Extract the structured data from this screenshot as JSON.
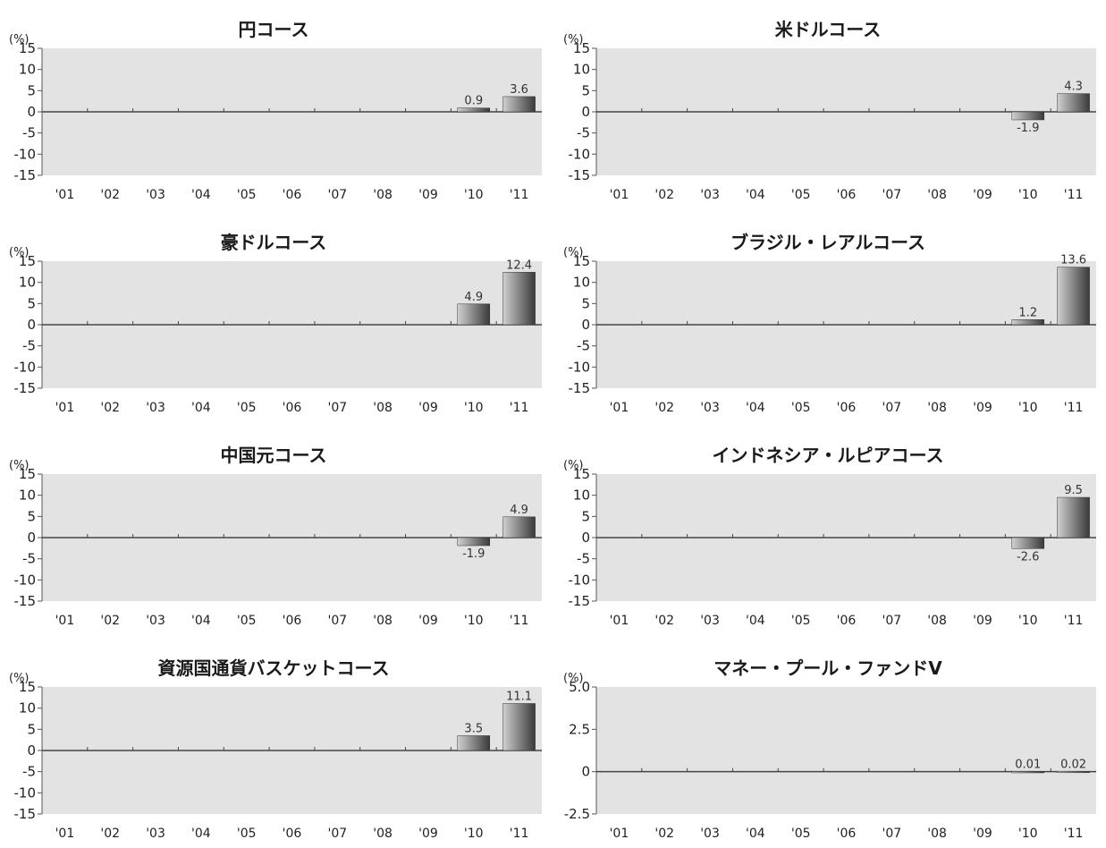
{
  "chart_data": [
    {
      "type": "bar",
      "title": "円コース",
      "ylabel": "(%)",
      "categories": [
        "'01",
        "'02",
        "'03",
        "'04",
        "'05",
        "'06",
        "'07",
        "'08",
        "'09",
        "'10",
        "'11"
      ],
      "values": [
        null,
        null,
        null,
        null,
        null,
        null,
        null,
        null,
        null,
        0.9,
        3.6
      ],
      "data_labels": [
        "",
        "",
        "",
        "",
        "",
        "",
        "",
        "",
        "",
        "0.9",
        "3.6"
      ],
      "ylim": [
        -15,
        15
      ],
      "yticks": [
        15,
        10,
        5,
        0,
        -5,
        -10,
        -15
      ],
      "ytick_labels": [
        "15",
        "10",
        "5",
        "0",
        "-5",
        "-10",
        "-15"
      ],
      "grid": false
    },
    {
      "type": "bar",
      "title": "米ドルコース",
      "ylabel": "(%)",
      "categories": [
        "'01",
        "'02",
        "'03",
        "'04",
        "'05",
        "'06",
        "'07",
        "'08",
        "'09",
        "'10",
        "'11"
      ],
      "values": [
        null,
        null,
        null,
        null,
        null,
        null,
        null,
        null,
        null,
        -1.9,
        4.3
      ],
      "data_labels": [
        "",
        "",
        "",
        "",
        "",
        "",
        "",
        "",
        "",
        "-1.9",
        "4.3"
      ],
      "ylim": [
        -15,
        15
      ],
      "yticks": [
        15,
        10,
        5,
        0,
        -5,
        -10,
        -15
      ],
      "ytick_labels": [
        "15",
        "10",
        "5",
        "0",
        "-5",
        "-10",
        "-15"
      ],
      "grid": false
    },
    {
      "type": "bar",
      "title": "豪ドルコース",
      "ylabel": "(%)",
      "categories": [
        "'01",
        "'02",
        "'03",
        "'04",
        "'05",
        "'06",
        "'07",
        "'08",
        "'09",
        "'10",
        "'11"
      ],
      "values": [
        null,
        null,
        null,
        null,
        null,
        null,
        null,
        null,
        null,
        4.9,
        12.4
      ],
      "data_labels": [
        "",
        "",
        "",
        "",
        "",
        "",
        "",
        "",
        "",
        "4.9",
        "12.4"
      ],
      "ylim": [
        -15,
        15
      ],
      "yticks": [
        15,
        10,
        5,
        0,
        -5,
        -10,
        -15
      ],
      "ytick_labels": [
        "15",
        "10",
        "5",
        "0",
        "-5",
        "-10",
        "-15"
      ],
      "grid": false
    },
    {
      "type": "bar",
      "title": "ブラジル・レアルコース",
      "ylabel": "(%)",
      "categories": [
        "'01",
        "'02",
        "'03",
        "'04",
        "'05",
        "'06",
        "'07",
        "'08",
        "'09",
        "'10",
        "'11"
      ],
      "values": [
        null,
        null,
        null,
        null,
        null,
        null,
        null,
        null,
        null,
        1.2,
        13.6
      ],
      "data_labels": [
        "",
        "",
        "",
        "",
        "",
        "",
        "",
        "",
        "",
        "1.2",
        "13.6"
      ],
      "ylim": [
        -15,
        15
      ],
      "yticks": [
        15,
        10,
        5,
        0,
        -5,
        -10,
        -15
      ],
      "ytick_labels": [
        "15",
        "10",
        "5",
        "0",
        "-5",
        "-10",
        "-15"
      ],
      "grid": false
    },
    {
      "type": "bar",
      "title": "中国元コース",
      "ylabel": "(%)",
      "categories": [
        "'01",
        "'02",
        "'03",
        "'04",
        "'05",
        "'06",
        "'07",
        "'08",
        "'09",
        "'10",
        "'11"
      ],
      "values": [
        null,
        null,
        null,
        null,
        null,
        null,
        null,
        null,
        null,
        -1.9,
        4.9
      ],
      "data_labels": [
        "",
        "",
        "",
        "",
        "",
        "",
        "",
        "",
        "",
        "-1.9",
        "4.9"
      ],
      "ylim": [
        -15,
        15
      ],
      "yticks": [
        15,
        10,
        5,
        0,
        -5,
        -10,
        -15
      ],
      "ytick_labels": [
        "15",
        "10",
        "5",
        "0",
        "-5",
        "-10",
        "-15"
      ],
      "grid": false
    },
    {
      "type": "bar",
      "title": "インドネシア・ルピアコース",
      "ylabel": "(%)",
      "categories": [
        "'01",
        "'02",
        "'03",
        "'04",
        "'05",
        "'06",
        "'07",
        "'08",
        "'09",
        "'10",
        "'11"
      ],
      "values": [
        null,
        null,
        null,
        null,
        null,
        null,
        null,
        null,
        null,
        -2.6,
        9.5
      ],
      "data_labels": [
        "",
        "",
        "",
        "",
        "",
        "",
        "",
        "",
        "",
        "-2.6",
        "9.5"
      ],
      "ylim": [
        -15,
        15
      ],
      "yticks": [
        15,
        10,
        5,
        0,
        -5,
        -10,
        -15
      ],
      "ytick_labels": [
        "15",
        "10",
        "5",
        "0",
        "-5",
        "-10",
        "-15"
      ],
      "grid": false
    },
    {
      "type": "bar",
      "title": "資源国通貨バスケットコース",
      "ylabel": "(%)",
      "categories": [
        "'01",
        "'02",
        "'03",
        "'04",
        "'05",
        "'06",
        "'07",
        "'08",
        "'09",
        "'10",
        "'11"
      ],
      "values": [
        null,
        null,
        null,
        null,
        null,
        null,
        null,
        null,
        null,
        3.5,
        11.1
      ],
      "data_labels": [
        "",
        "",
        "",
        "",
        "",
        "",
        "",
        "",
        "",
        "3.5",
        "11.1"
      ],
      "ylim": [
        -15,
        15
      ],
      "yticks": [
        15,
        10,
        5,
        0,
        -5,
        -10,
        -15
      ],
      "ytick_labels": [
        "15",
        "10",
        "5",
        "0",
        "-5",
        "-10",
        "-15"
      ],
      "grid": false
    },
    {
      "type": "bar",
      "title": "マネー・プール・ファンドV",
      "ylabel": "(%)",
      "categories": [
        "'01",
        "'02",
        "'03",
        "'04",
        "'05",
        "'06",
        "'07",
        "'08",
        "'09",
        "'10",
        "'11"
      ],
      "values": [
        null,
        null,
        null,
        null,
        null,
        null,
        null,
        null,
        null,
        0.01,
        0.02
      ],
      "data_labels": [
        "",
        "",
        "",
        "",
        "",
        "",
        "",
        "",
        "",
        "0.01",
        "0.02"
      ],
      "ylim": [
        -2.5,
        5.0
      ],
      "yticks": [
        5.0,
        2.5,
        0,
        -2.5
      ],
      "ytick_labels": [
        "5.0",
        "2.5",
        "0",
        "-2.5"
      ],
      "grid": false
    }
  ],
  "colors": {
    "plot_background": "#e3e3e3",
    "bar_dark": "#3a3a3a",
    "bar_mid": "#8c8c8c",
    "bar_light": "#d0d0d0",
    "axis": "#555555"
  }
}
